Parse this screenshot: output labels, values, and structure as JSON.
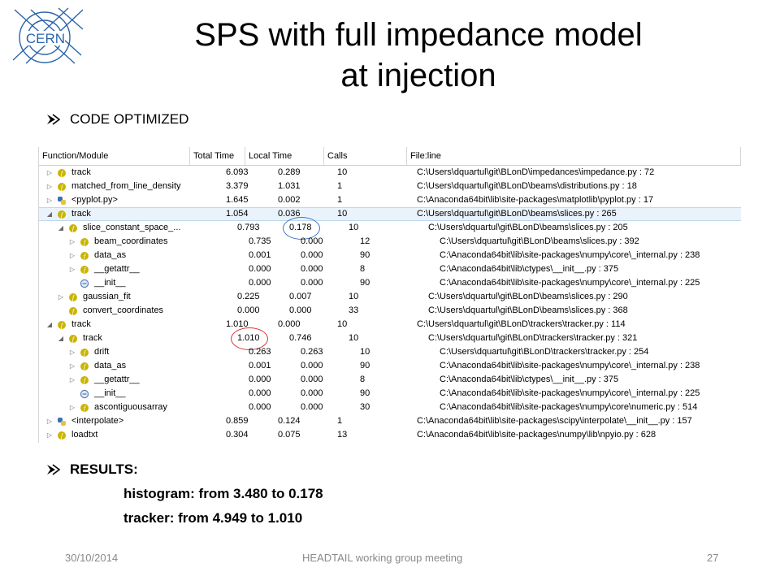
{
  "logo": {
    "text": "CERN",
    "icon": "cern-logo"
  },
  "title_line1": "SPS with full impedance model",
  "title_line2": "at injection",
  "bullet1": "CODE OPTIMIZED",
  "bullet2": "RESULTS:",
  "result1": "histogram: from 3.480 to 0.178",
  "result2": "tracker: from 4.949 to 1.010",
  "columns": [
    "Function/Module",
    "Total Time",
    "Local Time",
    "Calls",
    "File:line"
  ],
  "rows": [
    {
      "toggle": "▷",
      "icon": "function-icon",
      "name": "track",
      "total": "6.093",
      "local": "0.289",
      "calls": "10",
      "file": "C:\\Users\\dquartul\\git\\BLonD\\impedances\\impedance.py : 72"
    },
    {
      "toggle": "▷",
      "icon": "function-icon",
      "name": "matched_from_line_density",
      "total": "3.379",
      "local": "1.031",
      "calls": "1",
      "file": "C:\\Users\\dquartul\\git\\BLonD\\beams\\distributions.py : 18"
    },
    {
      "toggle": "▷",
      "icon": "python-icon",
      "name": "<pyplot.py>",
      "total": "1.645",
      "local": "0.002",
      "calls": "1",
      "file": "C:\\Anaconda64bit\\lib\\site-packages\\matplotlib\\pyplot.py : 17"
    },
    {
      "toggle": "◢",
      "icon": "function-icon",
      "name": "track",
      "total": "1.054",
      "local": "0.036",
      "calls": "10",
      "file": "C:\\Users\\dquartul\\git\\BLonD\\beams\\slices.py : 265",
      "selected": true
    },
    {
      "toggle": "◢",
      "icon": "function-icon",
      "name": "slice_constant_space_...",
      "total": "0.793",
      "local": "0.178",
      "calls": "10",
      "file": "C:\\Users\\dquartul\\git\\BLonD\\beams\\slices.py : 205"
    },
    {
      "toggle": "▷",
      "icon": "function-icon",
      "name": "beam_coordinates",
      "total": "0.735",
      "local": "0.000",
      "calls": "12",
      "file": "C:\\Users\\dquartul\\git\\BLonD\\beams\\slices.py : 392"
    },
    {
      "toggle": "▷",
      "icon": "function-icon",
      "name": "data_as",
      "total": "0.001",
      "local": "0.000",
      "calls": "90",
      "file": "C:\\Anaconda64bit\\lib\\site-packages\\numpy\\core\\_internal.py : 238"
    },
    {
      "toggle": "▷",
      "icon": "function-icon",
      "name": "__getattr__",
      "total": "0.000",
      "local": "0.000",
      "calls": "8",
      "file": "C:\\Anaconda64bit\\lib\\ctypes\\__init__.py : 375"
    },
    {
      "toggle": "",
      "icon": "constructor-icon",
      "name": "__init__",
      "total": "0.000",
      "local": "0.000",
      "calls": "90",
      "file": "C:\\Anaconda64bit\\lib\\site-packages\\numpy\\core\\_internal.py : 225"
    },
    {
      "toggle": "▷",
      "icon": "function-icon",
      "name": "gaussian_fit",
      "total": "0.225",
      "local": "0.007",
      "calls": "10",
      "file": "C:\\Users\\dquartul\\git\\BLonD\\beams\\slices.py : 290"
    },
    {
      "toggle": "",
      "icon": "function-icon",
      "name": "convert_coordinates",
      "total": "0.000",
      "local": "0.000",
      "calls": "33",
      "file": "C:\\Users\\dquartul\\git\\BLonD\\beams\\slices.py : 368"
    },
    {
      "toggle": "◢",
      "icon": "function-icon",
      "name": "track",
      "total": "1.010",
      "local": "0.000",
      "calls": "10",
      "file": "C:\\Users\\dquartul\\git\\BLonD\\trackers\\tracker.py : 114"
    },
    {
      "toggle": "◢",
      "icon": "function-icon",
      "name": "track",
      "total": "1.010",
      "local": "0.746",
      "calls": "10",
      "file": "C:\\Users\\dquartul\\git\\BLonD\\trackers\\tracker.py : 321"
    },
    {
      "toggle": "▷",
      "icon": "function-icon",
      "name": "drift",
      "total": "0.263",
      "local": "0.263",
      "calls": "10",
      "file": "C:\\Users\\dquartul\\git\\BLonD\\trackers\\tracker.py : 254"
    },
    {
      "toggle": "▷",
      "icon": "function-icon",
      "name": "data_as",
      "total": "0.001",
      "local": "0.000",
      "calls": "90",
      "file": "C:\\Anaconda64bit\\lib\\site-packages\\numpy\\core\\_internal.py : 238"
    },
    {
      "toggle": "▷",
      "icon": "function-icon",
      "name": "__getattr__",
      "total": "0.000",
      "local": "0.000",
      "calls": "8",
      "file": "C:\\Anaconda64bit\\lib\\ctypes\\__init__.py : 375"
    },
    {
      "toggle": "",
      "icon": "constructor-icon",
      "name": "__init__",
      "total": "0.000",
      "local": "0.000",
      "calls": "90",
      "file": "C:\\Anaconda64bit\\lib\\site-packages\\numpy\\core\\_internal.py : 225"
    },
    {
      "toggle": "▷",
      "icon": "function-icon",
      "name": "ascontiguousarray",
      "total": "0.000",
      "local": "0.000",
      "calls": "30",
      "file": "C:\\Anaconda64bit\\lib\\site-packages\\numpy\\core\\numeric.py : 514"
    },
    {
      "toggle": "▷",
      "icon": "python-icon",
      "name": "<interpolate>",
      "total": "0.859",
      "local": "0.124",
      "calls": "1",
      "file": "C:\\Anaconda64bit\\lib\\site-packages\\scipy\\interpolate\\__init__.py : 157"
    },
    {
      "toggle": "▷",
      "icon": "function-icon",
      "name": "loadtxt",
      "total": "0.304",
      "local": "0.075",
      "calls": "13",
      "file": "C:\\Anaconda64bit\\lib\\site-packages\\numpy\\lib\\npyio.py : 628"
    }
  ],
  "highlights": [
    {
      "row": 4,
      "column": "local",
      "color": "#4472c4"
    },
    {
      "row": 12,
      "column": "total",
      "color": "#e03030"
    }
  ],
  "footer": {
    "date": "30/10/2014",
    "event": "HEADTAIL working group meeting",
    "page": "27"
  },
  "colors": {
    "footer_text": "#8a8a8a",
    "function_icon": "#c9b500",
    "selection": "#eaf3fb"
  }
}
